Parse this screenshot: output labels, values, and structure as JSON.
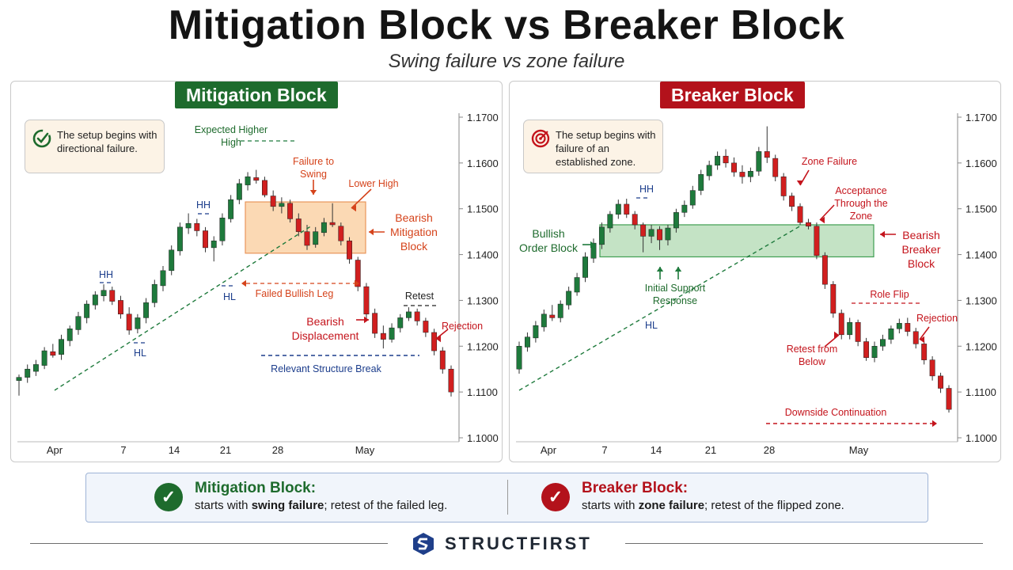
{
  "header": {
    "title": "Mitigation Block vs Breaker Block",
    "subtitle": "Swing failure vs zone failure"
  },
  "colors": {
    "bull": "#1e7a3c",
    "bear": "#d11f1f",
    "mitigation_zone": "#fbd9b4",
    "breaker_zone": "#c4e3c5",
    "green_label": "#1e6b2d",
    "red_label": "#b3121b",
    "blue_label": "#1c3d8c",
    "orange_label": "#d5431b"
  },
  "left_panel": {
    "badge": "Mitigation Block",
    "note_icon": "target-check-icon",
    "note": "The setup begins with directional failure.",
    "labels": {
      "expected_hh": "Expected Higher High",
      "failure_to_swing": "Failure to Swing",
      "lower_high": "Lower High",
      "bearish_mitigation_block": "Bearish Mitigation Block",
      "hh1": "HH",
      "hh2": "HH",
      "hl1": "HL",
      "hl2": "HL",
      "failed_bullish_leg": "Failed Bullish Leg",
      "retest": "Retest",
      "bearish_displacement": "Bearish Displacement",
      "rejection": "Rejection",
      "relevant_structure_break": "Relevant Structure Break"
    }
  },
  "right_panel": {
    "badge": "Breaker Block",
    "note_icon": "target-icon",
    "note": "The setup begins with failure of an established zone.",
    "labels": {
      "hh": "HH",
      "zone_failure": "Zone Failure",
      "acceptance": "Acceptance Through the Zone",
      "bullish_order_block": "Bullish Order Block",
      "bearish_breaker_block": "Bearish Breaker Block",
      "initial_support": "Initial Support Response",
      "hl": "HL",
      "role_flip": "Role Flip",
      "rejection": "Rejection",
      "retest_from_below": "Retest from Below",
      "downside_continuation": "Downside Continuation"
    }
  },
  "chart_data": [
    {
      "type": "candlestick",
      "title": "Mitigation Block",
      "x_ticks": [
        "Apr",
        "7",
        "14",
        "21",
        "28",
        "May"
      ],
      "y_ticks": [
        "1.1700",
        "1.1600",
        "1.1500",
        "1.1400",
        "1.1300",
        "1.1200",
        "1.1100",
        "1.1000"
      ],
      "ylim": [
        1.1,
        1.17
      ],
      "zone": [
        1.1403,
        1.1515
      ],
      "candles": [
        [
          1.1125,
          1.1138,
          1.1092,
          1.1132
        ],
        [
          1.1132,
          1.116,
          1.112,
          1.115
        ],
        [
          1.1145,
          1.117,
          1.1135,
          1.116
        ],
        [
          1.1158,
          1.1198,
          1.115,
          1.119
        ],
        [
          1.1188,
          1.1205,
          1.1175,
          1.118
        ],
        [
          1.1182,
          1.1225,
          1.117,
          1.1215
        ],
        [
          1.1212,
          1.1245,
          1.12,
          1.1238
        ],
        [
          1.1236,
          1.1275,
          1.1225,
          1.1265
        ],
        [
          1.1262,
          1.13,
          1.125,
          1.1292
        ],
        [
          1.129,
          1.132,
          1.128,
          1.1312
        ],
        [
          1.131,
          1.1335,
          1.1298,
          1.1322
        ],
        [
          1.1322,
          1.133,
          1.129,
          1.1298
        ],
        [
          1.13,
          1.131,
          1.126,
          1.127
        ],
        [
          1.127,
          1.1285,
          1.1225,
          1.1235
        ],
        [
          1.1238,
          1.127,
          1.1228,
          1.1262
        ],
        [
          1.1262,
          1.1305,
          1.125,
          1.1295
        ],
        [
          1.1295,
          1.1345,
          1.1285,
          1.1335
        ],
        [
          1.1332,
          1.1375,
          1.132,
          1.1365
        ],
        [
          1.1365,
          1.142,
          1.1355,
          1.141
        ],
        [
          1.1408,
          1.147,
          1.1398,
          1.146
        ],
        [
          1.1458,
          1.149,
          1.1445,
          1.1468
        ],
        [
          1.1468,
          1.1478,
          1.144,
          1.1452
        ],
        [
          1.1452,
          1.146,
          1.1405,
          1.1415
        ],
        [
          1.1415,
          1.144,
          1.1385,
          1.143
        ],
        [
          1.143,
          1.149,
          1.142,
          1.148
        ],
        [
          1.1478,
          1.153,
          1.147,
          1.152
        ],
        [
          1.152,
          1.1565,
          1.151,
          1.1555
        ],
        [
          1.1552,
          1.158,
          1.154,
          1.157
        ],
        [
          1.1568,
          1.1585,
          1.1555,
          1.1562
        ],
        [
          1.1562,
          1.157,
          1.1525,
          1.153
        ],
        [
          1.1528,
          1.154,
          1.1495,
          1.1505
        ],
        [
          1.1505,
          1.1525,
          1.149,
          1.1512
        ],
        [
          1.1512,
          1.152,
          1.147,
          1.1478
        ],
        [
          1.1478,
          1.149,
          1.144,
          1.145
        ],
        [
          1.145,
          1.1465,
          1.141,
          1.142
        ],
        [
          1.1422,
          1.146,
          1.1415,
          1.145
        ],
        [
          1.1448,
          1.148,
          1.144,
          1.147
        ],
        [
          1.147,
          1.1512,
          1.146,
          1.1465
        ],
        [
          1.1462,
          1.147,
          1.142,
          1.143
        ],
        [
          1.143,
          1.1438,
          1.138,
          1.139
        ],
        [
          1.1388,
          1.1395,
          1.132,
          1.133
        ],
        [
          1.133,
          1.1338,
          1.126,
          1.127
        ],
        [
          1.1272,
          1.1282,
          1.1218,
          1.1228
        ],
        [
          1.1228,
          1.1245,
          1.1195,
          1.1215
        ],
        [
          1.1215,
          1.125,
          1.1208,
          1.124
        ],
        [
          1.124,
          1.127,
          1.123,
          1.1262
        ],
        [
          1.1262,
          1.1285,
          1.1255,
          1.1275
        ],
        [
          1.1275,
          1.1282,
          1.1245,
          1.1255
        ],
        [
          1.1255,
          1.1262,
          1.122,
          1.123
        ],
        [
          1.123,
          1.1238,
          1.118,
          1.119
        ],
        [
          1.119,
          1.1198,
          1.114,
          1.115
        ],
        [
          1.115,
          1.1158,
          1.109,
          1.11
        ]
      ]
    },
    {
      "type": "candlestick",
      "title": "Breaker Block",
      "x_ticks": [
        "Apr",
        "7",
        "14",
        "21",
        "28",
        "May"
      ],
      "y_ticks": [
        "1.1700",
        "1.1600",
        "1.1500",
        "1.1400",
        "1.1300",
        "1.1200",
        "1.1100",
        "1.1000"
      ],
      "ylim": [
        1.1,
        1.17
      ],
      "zone": [
        1.1395,
        1.1465
      ],
      "candles": [
        [
          1.115,
          1.121,
          1.114,
          1.12
        ],
        [
          1.1198,
          1.123,
          1.1188,
          1.122
        ],
        [
          1.1218,
          1.1255,
          1.1208,
          1.1245
        ],
        [
          1.1242,
          1.128,
          1.1232,
          1.127
        ],
        [
          1.1268,
          1.129,
          1.1255,
          1.1262
        ],
        [
          1.1262,
          1.13,
          1.1252,
          1.1292
        ],
        [
          1.129,
          1.133,
          1.128,
          1.132
        ],
        [
          1.1318,
          1.136,
          1.131,
          1.135
        ],
        [
          1.135,
          1.1405,
          1.134,
          1.1395
        ],
        [
          1.1392,
          1.1435,
          1.1382,
          1.1425
        ],
        [
          1.1422,
          1.147,
          1.1412,
          1.146
        ],
        [
          1.1458,
          1.1495,
          1.1448,
          1.1488
        ],
        [
          1.1488,
          1.152,
          1.1478,
          1.151
        ],
        [
          1.151,
          1.1522,
          1.148,
          1.1488
        ],
        [
          1.1488,
          1.1495,
          1.1455,
          1.1465
        ],
        [
          1.1465,
          1.147,
          1.1405,
          1.144
        ],
        [
          1.144,
          1.1465,
          1.1425,
          1.1455
        ],
        [
          1.1455,
          1.1462,
          1.141,
          1.1432
        ],
        [
          1.1432,
          1.1465,
          1.142,
          1.1458
        ],
        [
          1.1458,
          1.15,
          1.1448,
          1.1492
        ],
        [
          1.1492,
          1.1518,
          1.1482,
          1.1508
        ],
        [
          1.1508,
          1.155,
          1.15,
          1.154
        ],
        [
          1.154,
          1.1585,
          1.153,
          1.1575
        ],
        [
          1.1572,
          1.1605,
          1.1562,
          1.1595
        ],
        [
          1.1595,
          1.1625,
          1.1585,
          1.1615
        ],
        [
          1.1615,
          1.163,
          1.159,
          1.16
        ],
        [
          1.16,
          1.1612,
          1.157,
          1.158
        ],
        [
          1.158,
          1.1595,
          1.1555,
          1.157
        ],
        [
          1.157,
          1.159,
          1.1558,
          1.1582
        ],
        [
          1.1582,
          1.1635,
          1.1572,
          1.1625
        ],
        [
          1.1625,
          1.168,
          1.16,
          1.1612
        ],
        [
          1.161,
          1.1618,
          1.156,
          1.157
        ],
        [
          1.157,
          1.1578,
          1.1518,
          1.1528
        ],
        [
          1.1528,
          1.1535,
          1.1495,
          1.1505
        ],
        [
          1.1505,
          1.1512,
          1.1465,
          1.147
        ],
        [
          1.147,
          1.1478,
          1.1455,
          1.1462
        ],
        [
          1.1462,
          1.147,
          1.139,
          1.1398
        ],
        [
          1.1398,
          1.1405,
          1.1325,
          1.1335
        ],
        [
          1.1335,
          1.1342,
          1.1262,
          1.1272
        ],
        [
          1.1272,
          1.128,
          1.1215,
          1.1225
        ],
        [
          1.1225,
          1.1262,
          1.1215,
          1.1252
        ],
        [
          1.1252,
          1.1258,
          1.12,
          1.121
        ],
        [
          1.121,
          1.1218,
          1.1168,
          1.1175
        ],
        [
          1.1175,
          1.121,
          1.1165,
          1.12
        ],
        [
          1.12,
          1.1225,
          1.119,
          1.1215
        ],
        [
          1.1215,
          1.1245,
          1.1205,
          1.1238
        ],
        [
          1.1238,
          1.126,
          1.1228,
          1.125
        ],
        [
          1.125,
          1.1262,
          1.1222,
          1.1232
        ],
        [
          1.1232,
          1.124,
          1.1195,
          1.1205
        ],
        [
          1.1205,
          1.1212,
          1.116,
          1.117
        ],
        [
          1.117,
          1.1178,
          1.1125,
          1.1135
        ],
        [
          1.1135,
          1.1142,
          1.1098,
          1.1108
        ],
        [
          1.1108,
          1.1115,
          1.1055,
          1.1062
        ]
      ]
    }
  ],
  "summary": {
    "mitigation": {
      "head": "Mitigation Block:",
      "pre": "starts with ",
      "bold": "swing failure",
      "post": "; retest of the failed leg."
    },
    "breaker": {
      "head": "Breaker Block:",
      "pre": "starts with ",
      "bold": "zone failure",
      "post": "; retest of the flipped zone."
    }
  },
  "brand": {
    "name": "STRUCTFIRST",
    "icon": "structfirst-logo-icon"
  }
}
